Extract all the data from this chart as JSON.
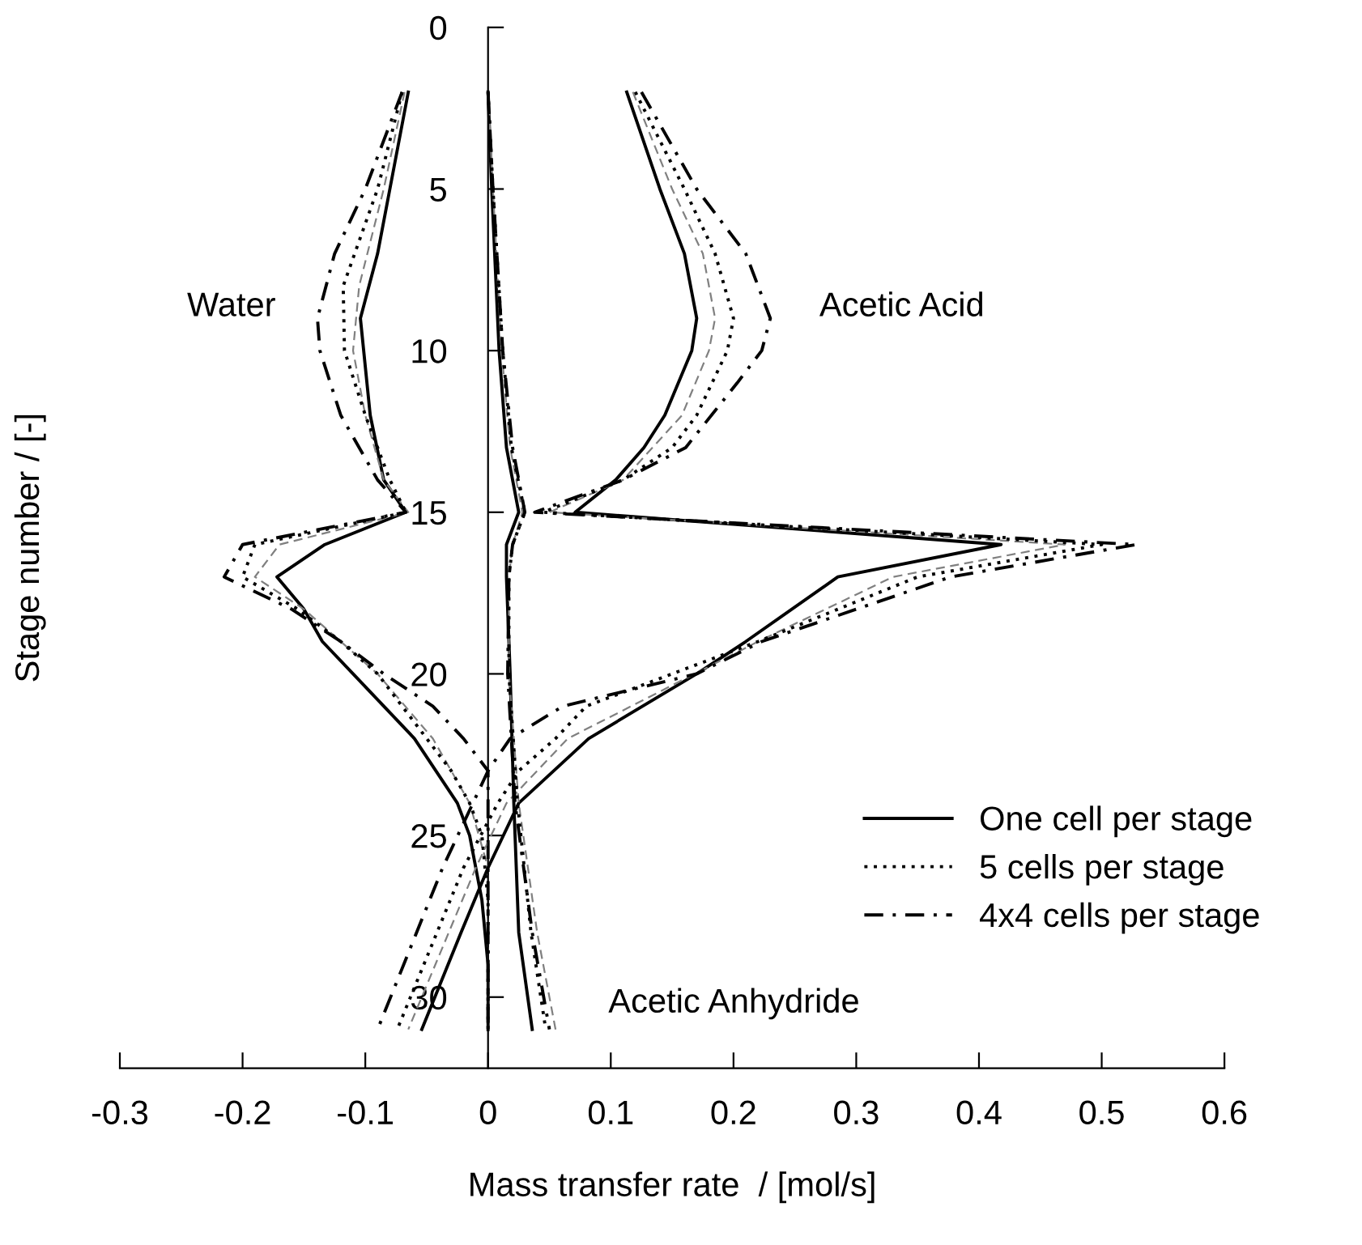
{
  "chart_data": {
    "type": "line",
    "xlabel": "Mass transfer rate  / [mol/s]",
    "ylabel": "Stage number / [-]",
    "xlim": [
      -0.3,
      0.6
    ],
    "xticks": [
      -0.3,
      -0.2,
      -0.1,
      0,
      0.1,
      0.2,
      0.3,
      0.4,
      0.5,
      0.6
    ],
    "ylim": [
      32.2,
      0
    ],
    "yticks": [
      0,
      5,
      10,
      15,
      20,
      25,
      30
    ],
    "grid": false,
    "legend": "lower right",
    "marker": "none",
    "annotations": [
      "Water",
      "Acetic Acid",
      "Acetic Anhydride"
    ],
    "series": [
      {
        "name": "One cell per stage",
        "color": "#000000",
        "line_style": "solid",
        "x": [
          -0.065,
          -0.08,
          -0.09,
          -0.104,
          -0.096,
          -0.085,
          -0.067,
          -0.133,
          -0.172,
          -0.15,
          -0.135,
          -0.11,
          -0.06,
          -0.025,
          -0.015,
          -0.005,
          0,
          0
        ],
        "values": [
          2,
          5,
          7,
          9,
          12,
          14,
          15,
          16,
          17,
          18,
          19,
          20,
          22,
          24,
          25,
          27,
          29,
          31
        ]
      },
      {
        "color": "#808080",
        "line_style": "dashed",
        "x": [
          -0.068,
          -0.085,
          -0.105,
          -0.11,
          -0.1,
          -0.085,
          -0.065,
          -0.17,
          -0.19,
          -0.15,
          -0.09,
          -0.045,
          -0.015,
          0,
          0
        ],
        "values": [
          2,
          5,
          8,
          10,
          12,
          14,
          15,
          16,
          17,
          18,
          20,
          22,
          24,
          26,
          31
        ]
      },
      {
        "name": "5 cells per stage",
        "color": "#000000",
        "line_style": "dotted",
        "x": [
          -0.07,
          -0.09,
          -0.118,
          -0.117,
          -0.1,
          -0.08,
          -0.067,
          -0.19,
          -0.2,
          -0.155,
          -0.12,
          -0.09,
          -0.05,
          -0.03,
          -0.015,
          -0.005,
          0,
          0
        ],
        "values": [
          2,
          5,
          8,
          10,
          12,
          14,
          15,
          16,
          17,
          18,
          19,
          20,
          22,
          23,
          24,
          25,
          27,
          31
        ]
      },
      {
        "name": "4x4 cells per stage",
        "color": "#000000",
        "line_style": "dashdot",
        "x": [
          -0.07,
          -0.1,
          -0.125,
          -0.139,
          -0.137,
          -0.12,
          -0.09,
          -0.067,
          -0.2,
          -0.215,
          -0.16,
          -0.12,
          -0.085,
          -0.045,
          -0.02,
          0,
          0,
          0
        ],
        "values": [
          2,
          5,
          7,
          9,
          10,
          12,
          14,
          15,
          16,
          17,
          18,
          19,
          20,
          21,
          22,
          23,
          25,
          31
        ]
      },
      {
        "color": "#000000",
        "line_style": "solid",
        "x": [
          0.113,
          0.14,
          0.16,
          0.17,
          0.166,
          0.144,
          0.127,
          0.104,
          0.071,
          0.418,
          0.285,
          0.21,
          0.17,
          0.082,
          0.025,
          0,
          -0.022,
          -0.054
        ],
        "values": [
          2,
          5,
          7,
          9,
          10,
          12,
          13,
          14,
          15,
          16,
          17,
          19,
          20,
          22,
          24,
          26,
          28,
          31
        ]
      },
      {
        "color": "#808080",
        "line_style": "dashed",
        "x": [
          0.118,
          0.15,
          0.175,
          0.185,
          0.18,
          0.158,
          0.11,
          0.05,
          0.47,
          0.33,
          0.22,
          0.065,
          0.015,
          -0.01,
          -0.065
        ],
        "values": [
          2,
          5,
          7,
          9,
          10,
          12,
          14,
          15,
          16,
          17,
          19,
          22,
          24,
          26,
          31
        ]
      },
      {
        "color": "#000000",
        "line_style": "dotted",
        "x": [
          0.12,
          0.16,
          0.185,
          0.2,
          0.195,
          0.17,
          0.15,
          0.11,
          0.045,
          0.5,
          0.35,
          0.22,
          0.08,
          0.055,
          0.025,
          0.008,
          -0.02,
          -0.074
        ],
        "values": [
          2,
          5,
          7,
          9,
          10,
          12,
          13,
          14,
          15,
          16,
          17,
          19,
          21,
          22,
          23,
          24,
          26,
          31
        ]
      },
      {
        "color": "#000000",
        "line_style": "dashdot",
        "x": [
          0.125,
          0.17,
          0.21,
          0.23,
          0.223,
          0.203,
          0.161,
          0.11,
          0.038,
          0.528,
          0.377,
          0.3,
          0.223,
          0.17,
          0.061,
          0.018,
          0,
          -0.037,
          -0.09
        ],
        "values": [
          2,
          5,
          7,
          9,
          10,
          11,
          13,
          14,
          15,
          16,
          17,
          18,
          19,
          20,
          21,
          22,
          23,
          26,
          31
        ]
      },
      {
        "color": "#000000",
        "line_style": "solid",
        "x": [
          0,
          0.003,
          0.009,
          0.015,
          0.025,
          0.015,
          0.015,
          0.018,
          0.021,
          0.025,
          0.036
        ],
        "values": [
          2,
          5,
          10,
          13,
          15,
          16,
          17,
          20,
          24,
          28,
          31
        ]
      },
      {
        "color": "#808080",
        "line_style": "dashed",
        "x": [
          0,
          0.004,
          0.011,
          0.018,
          0.028,
          0.02,
          0.017,
          0.017,
          0.025,
          0.04,
          0.055
        ],
        "values": [
          2,
          5,
          10,
          13,
          15,
          16,
          17,
          20,
          24,
          28,
          31
        ]
      },
      {
        "color": "#000000",
        "line_style": "dotted",
        "x": [
          0,
          0.004,
          0.012,
          0.019,
          0.03,
          0.02,
          0.017,
          0.017,
          0.024,
          0.035,
          0.047
        ],
        "values": [
          2,
          5,
          10,
          13,
          15,
          16,
          17,
          20,
          24,
          28,
          31
        ]
      },
      {
        "color": "#000000",
        "line_style": "dashdot",
        "x": [
          0,
          0.004,
          0.012,
          0.02,
          0.03,
          0.02,
          0.017,
          0.016,
          0.022,
          0.036,
          0.05
        ],
        "values": [
          2,
          5,
          10,
          13,
          15,
          16,
          17,
          20,
          24,
          28,
          31
        ]
      }
    ]
  }
}
